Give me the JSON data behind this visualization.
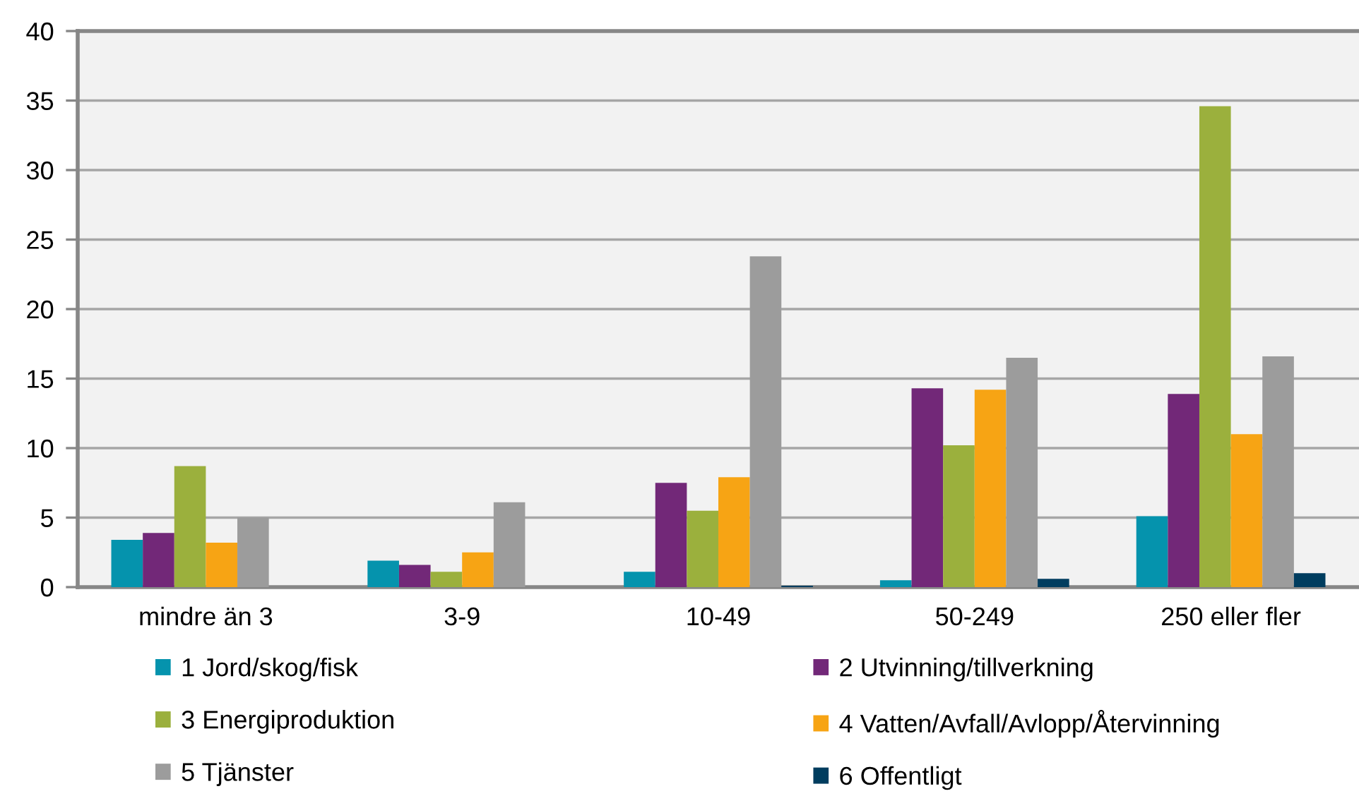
{
  "chart_data": {
    "type": "bar",
    "categories": [
      "mindre än 3",
      "3-9",
      "10-49",
      "50-249",
      "250 eller fler"
    ],
    "series": [
      {
        "name": "1 Jord/skog/fisk",
        "color": "#0593ad",
        "values": [
          3.4,
          1.9,
          1.1,
          0.5,
          5.1
        ]
      },
      {
        "name": "2 Utvinning/tillverkning",
        "color": "#722878",
        "values": [
          3.9,
          1.6,
          7.5,
          14.3,
          13.9
        ]
      },
      {
        "name": "3 Energiproduktion",
        "color": "#9bb03d",
        "values": [
          8.7,
          1.1,
          5.5,
          10.2,
          34.6
        ]
      },
      {
        "name": "4 Vatten/Avfall/Avlopp/Återvinning",
        "color": "#f7a414",
        "values": [
          3.2,
          2.5,
          7.9,
          14.2,
          11.0
        ]
      },
      {
        "name": "5 Tjänster",
        "color": "#9c9c9c",
        "values": [
          5.0,
          6.1,
          23.8,
          16.5,
          16.6
        ]
      },
      {
        "name": "6 Offentligt",
        "color": "#003d5f",
        "values": [
          0,
          0,
          0.1,
          0.6,
          1.0
        ]
      }
    ],
    "ylim": [
      0,
      40
    ],
    "yticks": [
      0,
      5,
      10,
      15,
      20,
      25,
      30,
      35,
      40
    ],
    "grid": "y",
    "legend": "bottom"
  }
}
